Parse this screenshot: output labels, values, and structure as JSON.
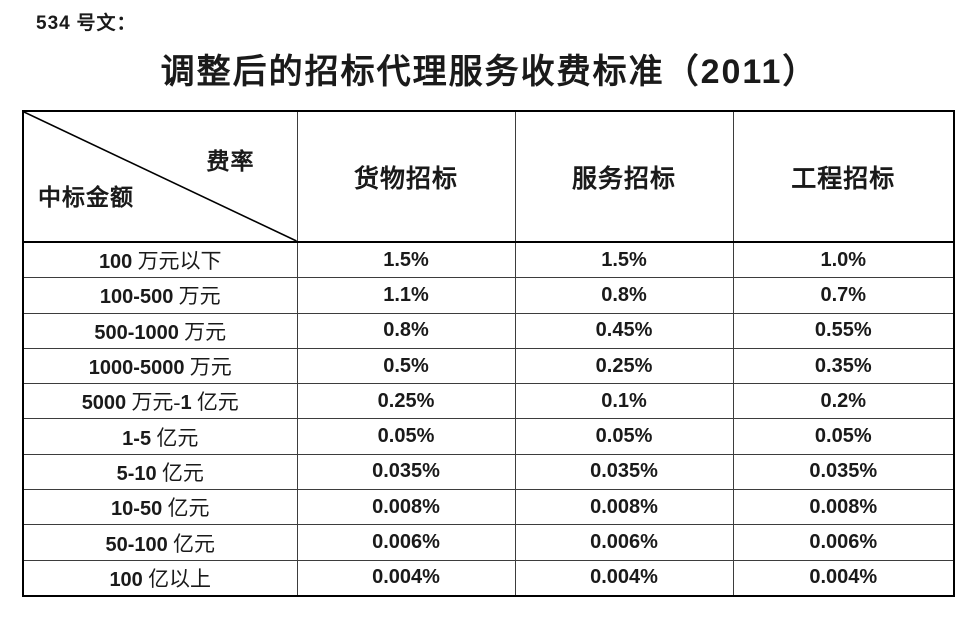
{
  "doc_label": "534 号文：",
  "title": "调整后的招标代理服务收费标准（2011）",
  "table": {
    "corner_top_right": "费率",
    "corner_bottom_left": "中标金额",
    "columns": [
      "货物招标",
      "服务招标",
      "工程招标"
    ],
    "rows": [
      {
        "label": "100 万元以下",
        "values": [
          "1.5%",
          "1.5%",
          "1.0%"
        ]
      },
      {
        "label": "100-500 万元",
        "values": [
          "1.1%",
          "0.8%",
          "0.7%"
        ]
      },
      {
        "label": "500-1000 万元",
        "values": [
          "0.8%",
          "0.45%",
          "0.55%"
        ]
      },
      {
        "label": "1000-5000 万元",
        "values": [
          "0.5%",
          "0.25%",
          "0.35%"
        ]
      },
      {
        "label": "5000 万元-1 亿元",
        "values": [
          "0.25%",
          "0.1%",
          "0.2%"
        ]
      },
      {
        "label": "1-5 亿元",
        "values": [
          "0.05%",
          "0.05%",
          "0.05%"
        ]
      },
      {
        "label": "5-10 亿元",
        "values": [
          "0.035%",
          "0.035%",
          "0.035%"
        ]
      },
      {
        "label": "10-50 亿元",
        "values": [
          "0.008%",
          "0.008%",
          "0.008%"
        ]
      },
      {
        "label": "50-100 亿元",
        "values": [
          "0.006%",
          "0.006%",
          "0.006%"
        ]
      },
      {
        "label": "100 亿以上",
        "values": [
          "0.004%",
          "0.004%",
          "0.004%"
        ]
      }
    ]
  },
  "colors": {
    "background": "#ffffff",
    "text": "#1a1a1a",
    "border_outer": "#000000",
    "border_inner": "#3d3d3d"
  }
}
